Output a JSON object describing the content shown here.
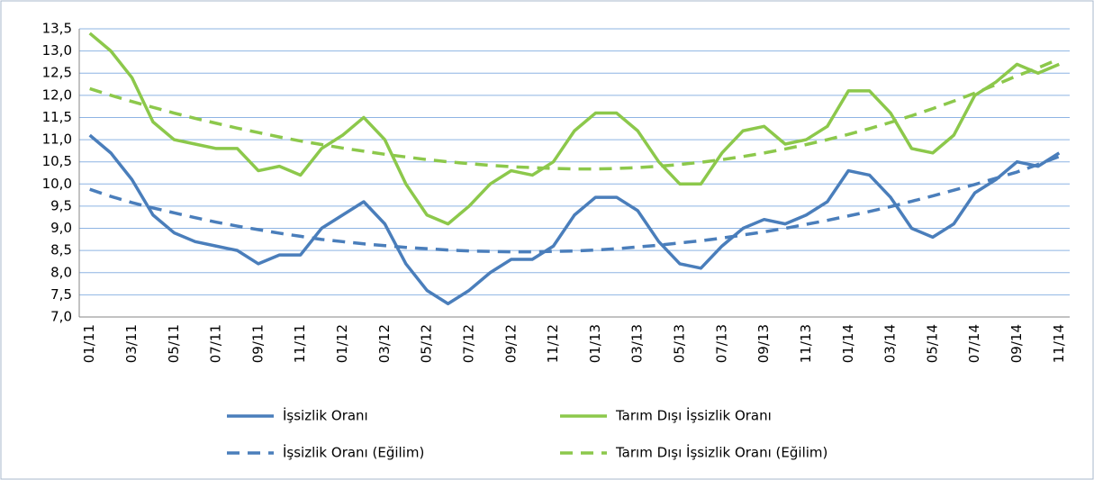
{
  "chart_data": {
    "type": "line",
    "categories": [
      "01/11",
      null,
      "03/11",
      null,
      "05/11",
      null,
      "07/11",
      null,
      "09/11",
      null,
      "11/11",
      null,
      "01/12",
      null,
      "03/12",
      null,
      "05/12",
      null,
      "07/12",
      null,
      "09/12",
      null,
      "11/12",
      null,
      "01/13",
      null,
      "03/13",
      null,
      "05/13",
      null,
      "07/13",
      null,
      "09/13",
      null,
      "11/13",
      null,
      "01/14",
      null,
      "03/14",
      null,
      "05/14",
      null,
      "07/14",
      null,
      "09/14",
      null,
      "11/14"
    ],
    "series": [
      {
        "name": "İşsizlik Oranı",
        "color": "#4a7ebb",
        "style": "solid",
        "values": [
          11.1,
          10.7,
          10.1,
          9.3,
          8.9,
          8.7,
          8.6,
          8.5,
          8.2,
          8.4,
          8.4,
          9.0,
          9.3,
          9.6,
          9.1,
          8.2,
          7.6,
          7.3,
          7.6,
          8.0,
          8.3,
          8.3,
          8.6,
          9.3,
          9.7,
          9.7,
          9.4,
          8.7,
          8.2,
          8.1,
          8.6,
          9.0,
          9.2,
          9.1,
          9.3,
          9.6,
          10.3,
          10.2,
          9.7,
          9.0,
          8.8,
          9.1,
          9.8,
          10.1,
          10.5,
          10.4,
          10.7
        ]
      },
      {
        "name": "Tarım Dışı İşsizlik Oranı",
        "color": "#8cc84b",
        "style": "solid",
        "values": [
          13.4,
          13.0,
          12.4,
          11.4,
          11.0,
          10.9,
          10.8,
          10.8,
          10.3,
          10.4,
          10.2,
          10.8,
          11.1,
          11.5,
          11.0,
          10.0,
          9.3,
          9.1,
          9.5,
          10.0,
          10.3,
          10.2,
          10.5,
          11.2,
          11.6,
          11.6,
          11.2,
          10.5,
          10.0,
          10.0,
          10.7,
          11.2,
          11.3,
          10.9,
          11.0,
          11.3,
          12.1,
          12.1,
          11.6,
          10.8,
          10.7,
          11.1,
          12.0,
          12.3,
          12.7,
          12.5,
          12.7
        ]
      },
      {
        "name": "İşsizlik Oranı (Eğilim)",
        "color": "#4a7ebb",
        "style": "dashed",
        "values": [
          9.88,
          9.72,
          9.58,
          9.46,
          9.35,
          9.24,
          9.14,
          9.05,
          8.97,
          8.89,
          8.82,
          8.75,
          8.7,
          8.65,
          8.61,
          8.57,
          8.54,
          8.51,
          8.49,
          8.48,
          8.47,
          8.47,
          8.48,
          8.49,
          8.51,
          8.54,
          8.58,
          8.62,
          8.67,
          8.72,
          8.78,
          8.85,
          8.92,
          9.0,
          9.09,
          9.18,
          9.28,
          9.38,
          9.49,
          9.61,
          9.73,
          9.86,
          9.99,
          10.13,
          10.27,
          10.44,
          10.62
        ]
      },
      {
        "name": "Tarım Dışı İşsizlik Oranı (Eğilim)",
        "color": "#8cc84b",
        "style": "dashed",
        "values": [
          12.15,
          12.0,
          11.86,
          11.73,
          11.6,
          11.48,
          11.37,
          11.26,
          11.16,
          11.06,
          10.97,
          10.89,
          10.81,
          10.74,
          10.67,
          10.61,
          10.55,
          10.5,
          10.46,
          10.42,
          10.39,
          10.37,
          10.35,
          10.34,
          10.34,
          10.35,
          10.37,
          10.4,
          10.44,
          10.49,
          10.55,
          10.62,
          10.7,
          10.79,
          10.89,
          11.0,
          11.12,
          11.25,
          11.39,
          11.54,
          11.7,
          11.87,
          12.05,
          12.24,
          12.44,
          12.62,
          12.82
        ]
      }
    ],
    "ylim": [
      7.0,
      13.5
    ],
    "yticks": [
      {
        "value": 7.0,
        "label": "7,0"
      },
      {
        "value": 7.5,
        "label": "7,5"
      },
      {
        "value": 8.0,
        "label": "8,0"
      },
      {
        "value": 8.5,
        "label": "8,5"
      },
      {
        "value": 9.0,
        "label": "9,0"
      },
      {
        "value": 9.5,
        "label": "9,5"
      },
      {
        "value": 10.0,
        "label": "10,0"
      },
      {
        "value": 10.5,
        "label": "10,5"
      },
      {
        "value": 11.0,
        "label": "11,0"
      },
      {
        "value": 11.5,
        "label": "11,5"
      },
      {
        "value": 12.0,
        "label": "12,0"
      },
      {
        "value": 12.5,
        "label": "12,5"
      },
      {
        "value": 13.0,
        "label": "13,0"
      },
      {
        "value": 13.5,
        "label": "13,5"
      }
    ],
    "grid": true,
    "legend": "bottom"
  }
}
